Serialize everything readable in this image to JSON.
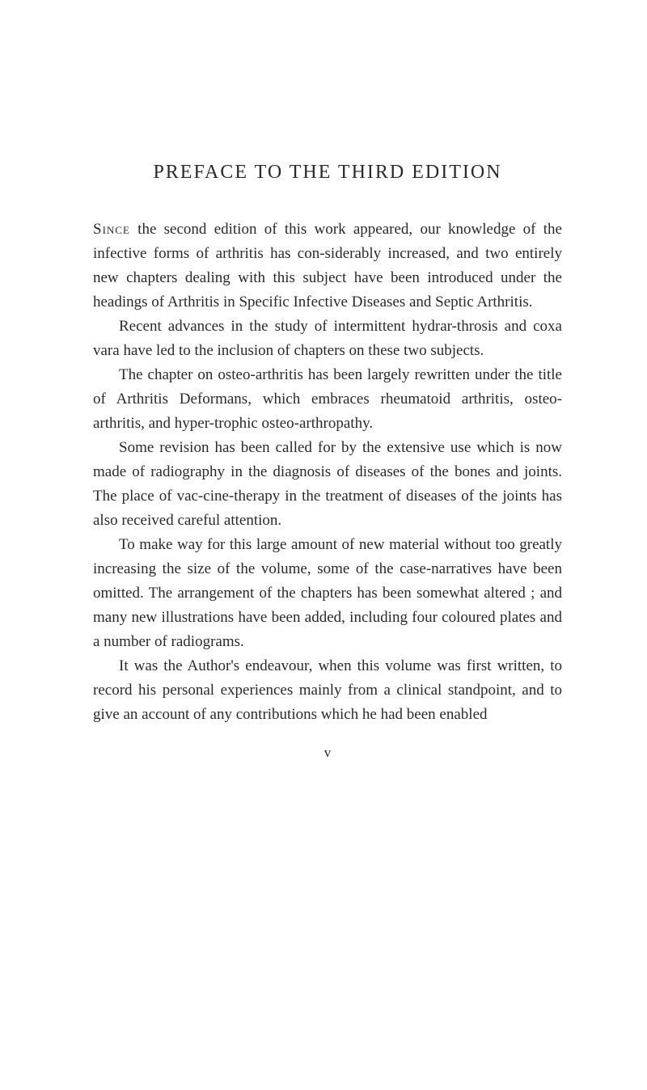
{
  "title": "PREFACE TO THE THIRD EDITION",
  "paragraphs": {
    "p1_first": "Since",
    "p1_rest": " the second edition of this work appeared, our knowledge of the infective forms of arthritis has con-",
    "p1_cont": "siderably increased, and two entirely new chapters dealing with this subject have been introduced under the headings of Arthritis in Specific Infective Diseases and Septic Arthritis.",
    "p2": "Recent advances in the study of intermittent hydrar-throsis and coxa vara have led to the inclusion of chapters on these two subjects.",
    "p3": "The chapter on osteo-arthritis has been largely rewritten under the title of Arthritis Deformans, which embraces rheumatoid arthritis, osteo-arthritis, and hyper-trophic osteo-arthropathy.",
    "p4": "Some revision has been called for by the extensive use which is now made of radiography in the diagnosis of diseases of the bones and joints. The place of vac-cine-therapy in the treatment of diseases of the joints has also received careful attention.",
    "p5": "To make way for this large amount of new material without too greatly increasing the size of the volume, some of the case-narratives have been omitted. The arrangement of the chapters has been somewhat altered ; and many new illustrations have been added, including four coloured plates and a number of radiograms.",
    "p6": "It was the Author's endeavour, when this volume was first written, to record his personal experiences mainly from a clinical standpoint, and to give an account of any contributions which he had been enabled"
  },
  "page_number": "v",
  "colors": {
    "background": "#ffffff",
    "text": "#2a2a2a"
  },
  "typography": {
    "title_fontsize": 24,
    "body_fontsize": 19,
    "page_num_fontsize": 17,
    "line_height": 1.58,
    "font_family": "Georgia, Times New Roman, serif"
  }
}
